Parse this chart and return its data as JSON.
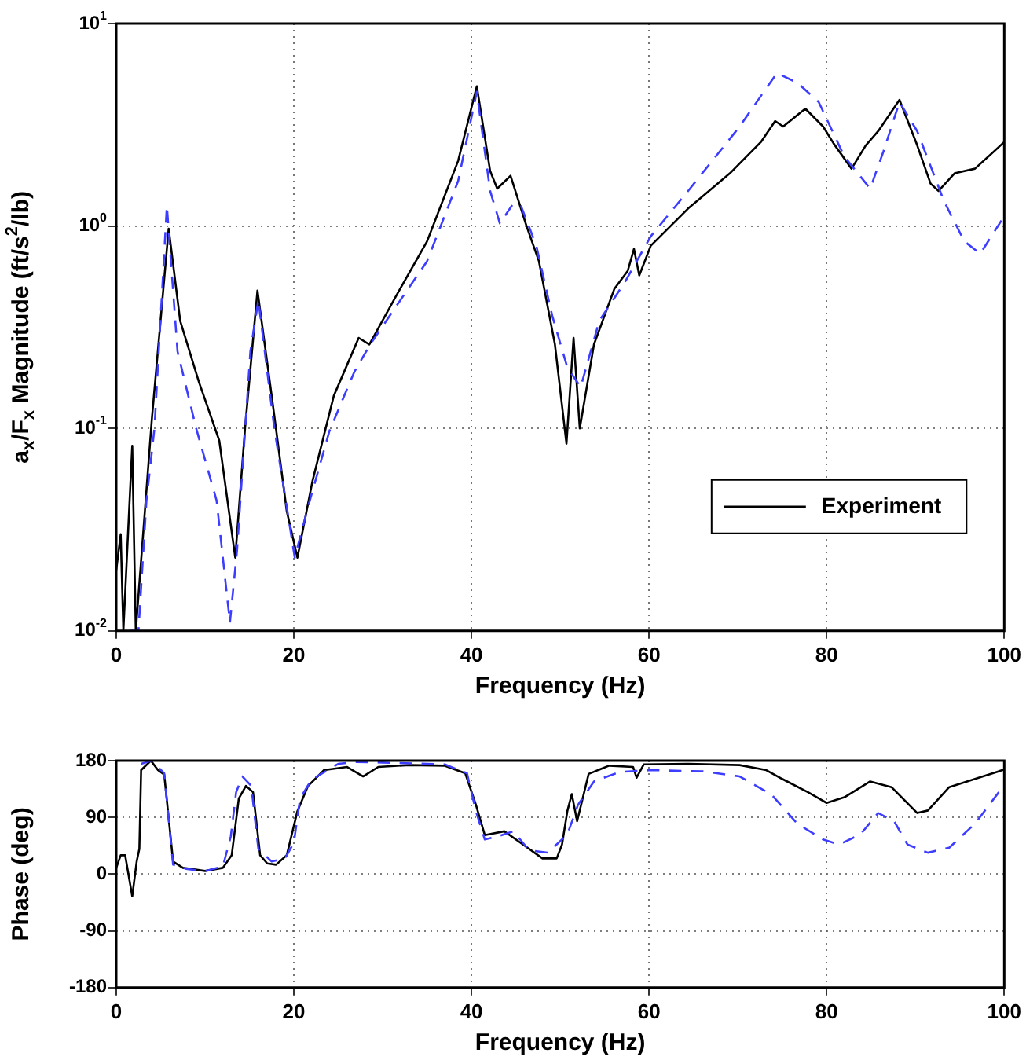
{
  "chart_data": [
    {
      "type": "line",
      "xlabel": "Frequency (Hz)",
      "ylabel": "a$_{x}$/F$_{x}$ Magnitude (ft/s$^{2}$/lb)",
      "log": "y",
      "xlim": [
        0,
        100
      ],
      "xticks": [
        0,
        20,
        40,
        60,
        80,
        100
      ],
      "ylim": [
        0.01,
        10
      ],
      "yticks": [
        {
          "value": 0.01,
          "label": "10$^{-2}$"
        },
        {
          "value": 0.1,
          "label": "10$^{-1}$"
        },
        {
          "value": 1,
          "label": "10$^{0}$"
        },
        {
          "value": 10,
          "label": "10$^{1}$"
        }
      ],
      "grid": true,
      "legend": "bottom right",
      "series": [
        {
          "color": "#3d3dff",
          "line_style": "dashed",
          "x": [
            1.5,
            2.5,
            3.4,
            4.3,
            5.7,
            6.9,
            9,
            11.3,
            12.8,
            13.6,
            15.1,
            16,
            17.8,
            20.1,
            21.6,
            24,
            26.8,
            28.6,
            31.5,
            35,
            38.5,
            40.6,
            42.1,
            43.2,
            44.7,
            45.6,
            47.3,
            49.1,
            50.8,
            52.3,
            54.4,
            57.3,
            60.2,
            64.4,
            70.2,
            74.4,
            76.7,
            79.1,
            82,
            84.9,
            86.4,
            88.2,
            90.2,
            93.2,
            95.5,
            97.3,
            100
          ],
          "values": [
            0.01,
            0.01,
            0.044,
            0.1,
            1.26,
            0.24,
            0.1,
            0.044,
            0.011,
            0.025,
            0.24,
            0.43,
            0.1,
            0.023,
            0.041,
            0.097,
            0.19,
            0.26,
            0.4,
            0.67,
            1.67,
            4.6,
            1.49,
            1.03,
            1.29,
            1.25,
            0.8,
            0.36,
            0.2,
            0.16,
            0.34,
            0.53,
            0.89,
            1.49,
            3.1,
            5.7,
            5.1,
            4.1,
            2.2,
            1.53,
            2.34,
            4.1,
            2.94,
            1.33,
            0.84,
            0.73,
            1.12
          ]
        },
        {
          "name": "Experiment",
          "color": "#000000",
          "x": [
            0,
            0.5,
            0.8,
            1.8,
            2.2,
            4,
            5.9,
            7.2,
            9.3,
            11.6,
            13.4,
            14.5,
            15.9,
            17.5,
            19.2,
            20.4,
            22.1,
            24.5,
            27.3,
            28.5,
            31.5,
            35,
            38.5,
            40.6,
            42.1,
            42.9,
            44.4,
            46.2,
            47.6,
            49.4,
            50.7,
            51.5,
            52.2,
            53.8,
            56.1,
            57.6,
            58.3,
            58.9,
            60.2,
            64.4,
            69.1,
            72.6,
            74.2,
            75.1,
            77.6,
            79.6,
            80.8,
            82.8,
            84.4,
            85.8,
            88.2,
            90.2,
            91.7,
            92.6,
            94.4,
            96.7,
            100
          ],
          "values": [
            0.02,
            0.03,
            0.01,
            0.082,
            0.01,
            0.11,
            0.97,
            0.34,
            0.17,
            0.087,
            0.023,
            0.1,
            0.48,
            0.145,
            0.039,
            0.023,
            0.055,
            0.145,
            0.28,
            0.26,
            0.45,
            0.84,
            2.1,
            4.9,
            1.87,
            1.53,
            1.77,
            1,
            0.67,
            0.26,
            0.084,
            0.28,
            0.1,
            0.26,
            0.49,
            0.6,
            0.77,
            0.57,
            0.8,
            1.22,
            1.82,
            2.6,
            3.3,
            3.1,
            3.8,
            3.1,
            2.55,
            1.92,
            2.5,
            2.94,
            4.2,
            2.5,
            1.62,
            1.49,
            1.82,
            1.92,
            2.6
          ]
        }
      ]
    },
    {
      "type": "line",
      "xlabel": "Frequency (Hz)",
      "ylabel": "Phase (deg)",
      "xlim": [
        0,
        100
      ],
      "xticks": [
        0,
        20,
        40,
        60,
        80,
        100
      ],
      "ylim": [
        -180,
        180
      ],
      "yticks": [
        -180,
        -90,
        0,
        90,
        180
      ],
      "grid": true,
      "series": [
        {
          "color": "#3d3dff",
          "line_style": "dashed",
          "x": [
            2.8,
            4,
            5.4,
            6.4,
            8,
            10,
            12,
            12.9,
            13.5,
            14.2,
            15.2,
            16,
            17.5,
            19,
            20,
            20.7,
            22,
            25,
            27,
            30,
            37,
            39.5,
            40.5,
            41.5,
            43,
            44.7,
            46.5,
            48.6,
            50.8,
            52,
            53.8,
            56.7,
            60.2,
            66.1,
            70.2,
            73.8,
            76.7,
            79.6,
            81.4,
            83.8,
            85.8,
            87.6,
            89.1,
            91.4,
            93.8,
            96.7,
            99.6,
            100
          ],
          "values": [
            175,
            180,
            160,
            15,
            8,
            5,
            12,
            60,
            130,
            155,
            140,
            40,
            20,
            25,
            50,
            120,
            150,
            175,
            178,
            177,
            174,
            160,
            100,
            55,
            60,
            68,
            38,
            34,
            63,
            110,
            147,
            162,
            165,
            163,
            155,
            126,
            80,
            55,
            47,
            63,
            97,
            84,
            47,
            34,
            42,
            80,
            134,
            138
          ]
        },
        {
          "color": "#000000",
          "x": [
            0,
            0.5,
            1,
            1.8,
            2.3,
            2.6,
            2.8,
            3.9,
            4.7,
            5.4,
            6.4,
            7.5,
            10,
            12,
            13,
            13.8,
            14.6,
            15.4,
            16.2,
            17,
            18,
            19.2,
            20.4,
            21.6,
            23.4,
            26,
            27.8,
            29.5,
            33,
            37,
            39.3,
            40.5,
            41.5,
            43.7,
            45.5,
            48,
            49.6,
            50.2,
            50.8,
            51.3,
            51.9,
            53.2,
            55.5,
            58.2,
            58.6,
            59.4,
            64.4,
            70.2,
            73.2,
            75,
            77.9,
            80,
            82,
            84.9,
            87.3,
            90.2,
            91.4,
            93.8,
            96.7,
            100
          ],
          "values": [
            10,
            30,
            30,
            -35,
            20,
            40,
            165,
            180,
            165,
            158,
            20,
            10,
            5,
            10,
            30,
            120,
            140,
            130,
            30,
            17,
            15,
            30,
            100,
            140,
            165,
            170,
            155,
            170,
            173,
            172,
            160,
            110,
            62,
            68,
            50,
            25,
            25,
            47,
            100,
            127,
            84,
            159,
            172,
            170,
            153,
            174,
            175,
            173,
            165,
            151,
            130,
            113,
            122,
            147,
            138,
            97,
            101,
            138,
            151,
            166
          ]
        }
      ]
    }
  ]
}
